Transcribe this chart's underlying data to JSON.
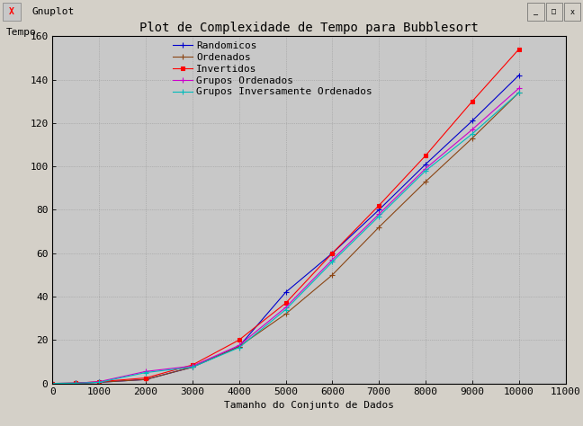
{
  "title": "Plot de Complexidade de Tempo para Bubblesort",
  "xlabel": "Tamanho do Conjunto de Dados",
  "ylabel": "Tempo",
  "xlim": [
    0,
    11000
  ],
  "ylim": [
    0,
    160
  ],
  "xticks": [
    0,
    1000,
    2000,
    3000,
    4000,
    5000,
    6000,
    7000,
    8000,
    9000,
    10000,
    11000
  ],
  "yticks": [
    0,
    20,
    40,
    60,
    80,
    100,
    120,
    140,
    160
  ],
  "outer_bg": "#d4d0c8",
  "plot_bg_color": "#c8c8c8",
  "window_title": "Gnuplot",
  "titlebar_bg": "#d4d0c8",
  "series": [
    {
      "label": "Randomicos",
      "color": "#0000cc",
      "marker": "+",
      "x": [
        0,
        500,
        1000,
        2000,
        3000,
        4000,
        5000,
        6000,
        7000,
        8000,
        9000,
        10000
      ],
      "y": [
        0,
        0.1,
        0.5,
        1.8,
        7.5,
        17.0,
        42.0,
        60.0,
        80.0,
        101.0,
        121.0,
        142.0
      ]
    },
    {
      "label": "Ordenados",
      "color": "#8B4513",
      "marker": "+",
      "x": [
        0,
        500,
        1000,
        2000,
        3000,
        4000,
        5000,
        6000,
        7000,
        8000,
        9000,
        10000
      ],
      "y": [
        0,
        0.1,
        0.5,
        1.8,
        7.5,
        17.0,
        32.0,
        50.0,
        72.0,
        93.0,
        113.0,
        134.0
      ]
    },
    {
      "label": "Invertidos",
      "color": "#ff0000",
      "marker": "s",
      "x": [
        0,
        500,
        1000,
        2000,
        3000,
        4000,
        5000,
        6000,
        7000,
        8000,
        9000,
        10000
      ],
      "y": [
        0,
        0.1,
        0.8,
        2.5,
        8.5,
        20.0,
        37.0,
        60.0,
        82.0,
        105.0,
        130.0,
        154.0
      ]
    },
    {
      "label": "Grupos Ordenados",
      "color": "#cc00cc",
      "marker": "+",
      "x": [
        0,
        500,
        1000,
        2000,
        3000,
        4000,
        5000,
        6000,
        7000,
        8000,
        9000,
        10000
      ],
      "y": [
        0,
        0.1,
        0.8,
        5.5,
        8.0,
        17.5,
        35.0,
        57.0,
        78.0,
        99.0,
        117.0,
        136.0
      ]
    },
    {
      "label": "Grupos Inversamente Ordenados",
      "color": "#00bbbb",
      "marker": "+",
      "x": [
        0,
        500,
        1000,
        2000,
        3000,
        4000,
        5000,
        6000,
        7000,
        8000,
        9000,
        10000
      ],
      "y": [
        0,
        0.1,
        0.5,
        5.0,
        7.5,
        16.5,
        34.0,
        56.0,
        77.0,
        98.0,
        115.0,
        134.0
      ]
    }
  ],
  "grid_color": "#999999",
  "font_family": "DejaVu Sans Mono",
  "title_fontsize": 10,
  "label_fontsize": 8,
  "tick_fontsize": 8,
  "legend_fontsize": 8,
  "marker_size": 4,
  "line_width": 0.8
}
